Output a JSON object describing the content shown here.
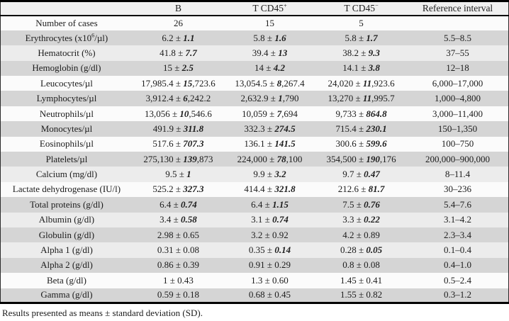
{
  "colors": {
    "text": "#1c1c1c",
    "border": "#000000",
    "header_bg": "#f0f0f0",
    "stripe_gray": "#d5d5d5",
    "stripe_light": "#ececec",
    "stripe_white": "#fbfbfb"
  },
  "table": {
    "columns": [
      {
        "id": "row-label",
        "segments": [
          [
            ""
          ]
        ]
      },
      {
        "id": "b",
        "segments": [
          [
            "B"
          ]
        ]
      },
      {
        "id": "t-cd45-pos",
        "segments": [
          [
            "T CD45"
          ],
          [
            "+",
            "sup"
          ]
        ]
      },
      {
        "id": "t-cd45-neg",
        "segments": [
          [
            "T CD45"
          ],
          [
            "−",
            "sup"
          ]
        ]
      },
      {
        "id": "reference-interval",
        "segments": [
          [
            "Reference interval"
          ]
        ]
      }
    ],
    "rows": [
      {
        "shade": "white",
        "label": [
          [
            "Number of cases"
          ]
        ],
        "cells": [
          [
            [
              "26"
            ]
          ],
          [
            [
              "15"
            ]
          ],
          [
            [
              "5"
            ]
          ],
          [
            [
              ""
            ]
          ]
        ]
      },
      {
        "shade": "gray",
        "label": [
          [
            "Erythrocytes (x10"
          ],
          [
            "6",
            "sup"
          ],
          [
            "/µl)"
          ]
        ],
        "cells": [
          [
            [
              "6.2 ± "
            ],
            [
              "1.1",
              "sd"
            ]
          ],
          [
            [
              "5.8 ± "
            ],
            [
              "1.6",
              "sd"
            ]
          ],
          [
            [
              "5.8 ± "
            ],
            [
              "1.7",
              "sd"
            ]
          ],
          [
            [
              "5.5–8.5"
            ]
          ]
        ]
      },
      {
        "shade": "light",
        "label": [
          [
            "Hematocrit (%)"
          ]
        ],
        "cells": [
          [
            [
              "41.8 ± "
            ],
            [
              "7.7",
              "sd"
            ]
          ],
          [
            [
              "39.4 ± "
            ],
            [
              "13",
              "sd"
            ]
          ],
          [
            [
              "38.2 ± "
            ],
            [
              "9.3",
              "sd"
            ]
          ],
          [
            [
              "37–55"
            ]
          ]
        ]
      },
      {
        "shade": "gray",
        "label": [
          [
            "Hemoglobin (g/dl)"
          ]
        ],
        "cells": [
          [
            [
              "15 ± "
            ],
            [
              "2.5",
              "sd"
            ]
          ],
          [
            [
              "14 ± "
            ],
            [
              "4.2",
              "sd"
            ]
          ],
          [
            [
              "14.1 ± "
            ],
            [
              "3.8",
              "sd"
            ]
          ],
          [
            [
              "12–18"
            ]
          ]
        ]
      },
      {
        "shade": "white",
        "label": [
          [
            "Leucocytes/µl"
          ]
        ],
        "cells": [
          [
            [
              "17,985.4 ± "
            ],
            [
              "15",
              "sd"
            ],
            [
              ",723.6"
            ]
          ],
          [
            [
              "13,054.5 ± "
            ],
            [
              "8",
              "sd"
            ],
            [
              ",267.4"
            ]
          ],
          [
            [
              "24,020 ± "
            ],
            [
              "11",
              "sd"
            ],
            [
              ",923.6"
            ]
          ],
          [
            [
              "6,000–17,000"
            ]
          ]
        ]
      },
      {
        "shade": "gray",
        "label": [
          [
            "Lymphocytes/µl"
          ]
        ],
        "cells": [
          [
            [
              "3,912.4 ± "
            ],
            [
              "6",
              "sd"
            ],
            [
              ",242.2"
            ]
          ],
          [
            [
              "2,632.9 ± "
            ],
            [
              "1",
              "sd"
            ],
            [
              ",790"
            ]
          ],
          [
            [
              "13,270 ± "
            ],
            [
              "11",
              "sd"
            ],
            [
              ",995.7"
            ]
          ],
          [
            [
              "1,000–4,800"
            ]
          ]
        ]
      },
      {
        "shade": "white",
        "label": [
          [
            "Neutrophils/µl"
          ]
        ],
        "cells": [
          [
            [
              "13,056 ± "
            ],
            [
              "10",
              "sd"
            ],
            [
              ",546.6"
            ]
          ],
          [
            [
              "10,059 ± "
            ],
            [
              "7",
              "sd"
            ],
            [
              ",694"
            ]
          ],
          [
            [
              "9,733 ± "
            ],
            [
              "864.8",
              "sd"
            ]
          ],
          [
            [
              "3,000–11,400"
            ]
          ]
        ]
      },
      {
        "shade": "gray",
        "label": [
          [
            "Monocytes/µl"
          ]
        ],
        "cells": [
          [
            [
              "491.9 ± "
            ],
            [
              "311.8",
              "sd"
            ]
          ],
          [
            [
              "332.3 ± "
            ],
            [
              "274.5",
              "sd"
            ]
          ],
          [
            [
              "715.4 ± "
            ],
            [
              "230.1",
              "sd"
            ]
          ],
          [
            [
              "150–1,350"
            ]
          ]
        ]
      },
      {
        "shade": "white",
        "label": [
          [
            "Eosinophils/µl"
          ]
        ],
        "cells": [
          [
            [
              "517.6 ± "
            ],
            [
              "707.3",
              "sd"
            ]
          ],
          [
            [
              "136.1 ± "
            ],
            [
              "141.5",
              "sd"
            ]
          ],
          [
            [
              "300.6 ± "
            ],
            [
              "599.6",
              "sd"
            ]
          ],
          [
            [
              "100–750"
            ]
          ]
        ]
      },
      {
        "shade": "gray",
        "label": [
          [
            "Platelets/µl"
          ]
        ],
        "cells": [
          [
            [
              "275,130 ± "
            ],
            [
              "139",
              "sd"
            ],
            [
              ",873"
            ]
          ],
          [
            [
              "224,000 ± "
            ],
            [
              "78",
              "sd"
            ],
            [
              ",100"
            ]
          ],
          [
            [
              "354,500 ± "
            ],
            [
              "190",
              "sd"
            ],
            [
              ",176"
            ]
          ],
          [
            [
              "200,000–900,000"
            ]
          ]
        ]
      },
      {
        "shade": "light",
        "label": [
          [
            "Calcium (mg/dl)"
          ]
        ],
        "cells": [
          [
            [
              "9.5 ± "
            ],
            [
              "1",
              "sd"
            ]
          ],
          [
            [
              "9.9 ± "
            ],
            [
              "3.2",
              "sd"
            ]
          ],
          [
            [
              "9.7 ± "
            ],
            [
              "0.47",
              "sd"
            ]
          ],
          [
            [
              "8–11.4"
            ]
          ]
        ]
      },
      {
        "shade": "white",
        "label": [
          [
            "Lactate dehydrogenase (IU/l)"
          ]
        ],
        "cells": [
          [
            [
              "525.2 ± "
            ],
            [
              "327.3",
              "sd"
            ]
          ],
          [
            [
              "414.4 ± "
            ],
            [
              "321.8",
              "sd"
            ]
          ],
          [
            [
              "212.6 ± "
            ],
            [
              "81.7",
              "sd"
            ]
          ],
          [
            [
              "30–236"
            ]
          ]
        ]
      },
      {
        "shade": "gray",
        "label": [
          [
            "Total proteins (g/dl)"
          ]
        ],
        "cells": [
          [
            [
              "6.4 ± "
            ],
            [
              "0.74",
              "sd"
            ]
          ],
          [
            [
              "6.4 ± "
            ],
            [
              "1.15",
              "sd"
            ]
          ],
          [
            [
              "7.5 ± "
            ],
            [
              "0.76",
              "sd"
            ]
          ],
          [
            [
              "5.4–7.6"
            ]
          ]
        ]
      },
      {
        "shade": "light",
        "label": [
          [
            "Albumin (g/dl)"
          ]
        ],
        "cells": [
          [
            [
              "3.4 ± "
            ],
            [
              "0.58",
              "sd"
            ]
          ],
          [
            [
              "3.1 ± "
            ],
            [
              "0.74",
              "sd"
            ]
          ],
          [
            [
              "3.3 ± "
            ],
            [
              "0.22",
              "sd"
            ]
          ],
          [
            [
              "3.1–4.2"
            ]
          ]
        ]
      },
      {
        "shade": "gray",
        "label": [
          [
            "Globulin (g/dl)"
          ]
        ],
        "cells": [
          [
            [
              "2.98 ± 0.65"
            ]
          ],
          [
            [
              "3.2 ± 0.92"
            ]
          ],
          [
            [
              "4.2 ± 0.89"
            ]
          ],
          [
            [
              "2.3–3.4"
            ]
          ]
        ]
      },
      {
        "shade": "light",
        "label": [
          [
            "Alpha 1 (g/dl)"
          ]
        ],
        "cells": [
          [
            [
              "0.31 ± 0.08"
            ]
          ],
          [
            [
              "0.35 ± "
            ],
            [
              "0.14",
              "sd"
            ]
          ],
          [
            [
              "0.28 ± "
            ],
            [
              "0.05",
              "sd"
            ]
          ],
          [
            [
              "0.1–0.4"
            ]
          ]
        ]
      },
      {
        "shade": "gray",
        "label": [
          [
            "Alpha 2 (g/dl)"
          ]
        ],
        "cells": [
          [
            [
              "0.86 ± 0.39"
            ]
          ],
          [
            [
              "0.91 ± 0.29"
            ]
          ],
          [
            [
              "0.8 ± 0.08"
            ]
          ],
          [
            [
              "0.4–1.0"
            ]
          ]
        ]
      },
      {
        "shade": "white",
        "label": [
          [
            "Beta (g/dl)"
          ]
        ],
        "cells": [
          [
            [
              "1 ± 0.43"
            ]
          ],
          [
            [
              "1.3 ± 0.60"
            ]
          ],
          [
            [
              "1.45 ± 0.41"
            ]
          ],
          [
            [
              "0.5–2.4"
            ]
          ]
        ]
      },
      {
        "shade": "gray",
        "label": [
          [
            "Gamma (g/dl)"
          ]
        ],
        "cells": [
          [
            [
              "0.59 ± 0.18"
            ]
          ],
          [
            [
              "0.68 ± 0.45"
            ]
          ],
          [
            [
              "1.55 ± 0.82"
            ]
          ],
          [
            [
              "0.3–1.2"
            ]
          ]
        ]
      }
    ]
  },
  "footnote": "Results presented as means ± standard deviation (SD)."
}
